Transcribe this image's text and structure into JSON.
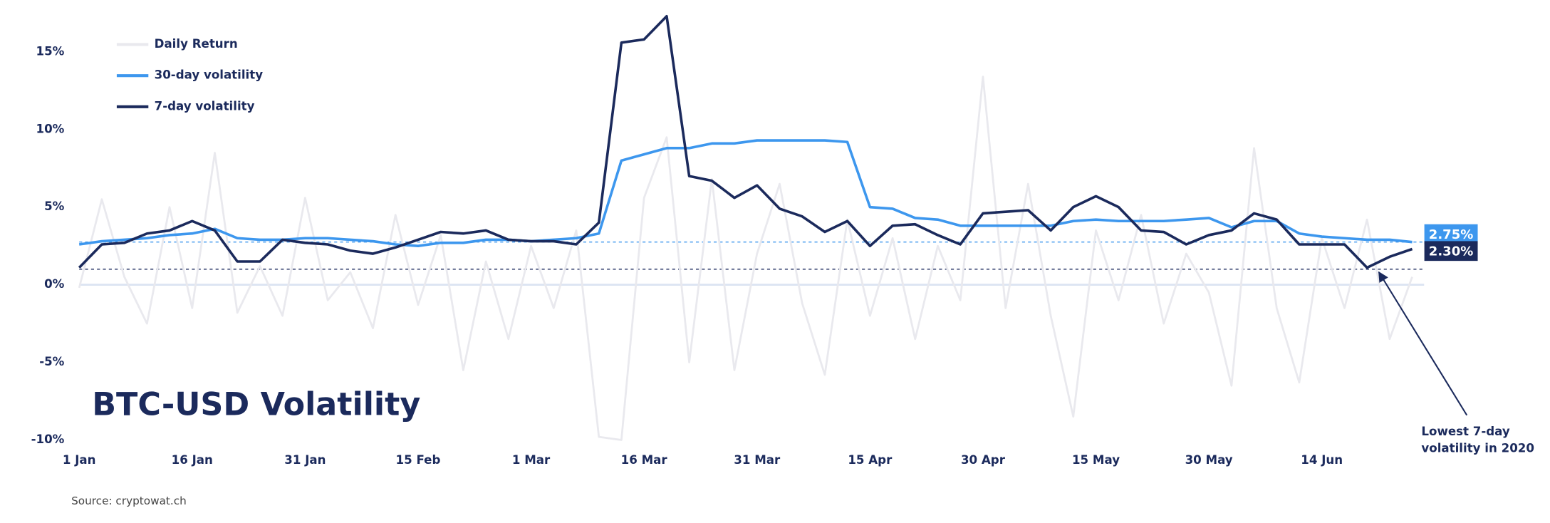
{
  "chart_data": {
    "type": "line",
    "title": "BTC-USD Volatility",
    "source": "Source: cryptowat.ch",
    "categories": [
      "1 Jan",
      null,
      null,
      null,
      null,
      "16 Jan",
      null,
      null,
      null,
      null,
      "31 Jan",
      null,
      null,
      null,
      null,
      "15 Feb",
      null,
      null,
      null,
      null,
      "1 Mar",
      null,
      null,
      null,
      null,
      "16 Mar",
      null,
      null,
      null,
      null,
      "31 Mar",
      null,
      null,
      null,
      null,
      "15 Apr",
      null,
      null,
      null,
      null,
      "30 Apr",
      null,
      null,
      null,
      null,
      "15 May",
      null,
      null,
      null,
      null,
      "30 May",
      null,
      null,
      null,
      null,
      "14 Jun",
      null,
      null,
      null,
      null
    ],
    "ylim": [
      -11,
      18
    ],
    "yticks": [
      {
        "value": -10,
        "label": "-10%"
      },
      {
        "value": -5,
        "label": "-5%"
      },
      {
        "value": 0,
        "label": "0%"
      },
      {
        "value": 5,
        "label": "5%"
      },
      {
        "value": 10,
        "label": "10%"
      },
      {
        "value": 15,
        "label": "15%"
      }
    ],
    "grid": false,
    "series": [
      {
        "name": "Daily Return",
        "color": "#e9e9ee",
        "values": [
          -0.2,
          5.5,
          0.5,
          -2.5,
          5.0,
          -1.5,
          8.5,
          -1.8,
          1.2,
          -2.0,
          5.6,
          -1.0,
          0.8,
          -2.8,
          4.5,
          -1.3,
          3.2,
          -5.5,
          1.5,
          -3.5,
          2.5,
          -1.5,
          3.5,
          -9.8,
          -10,
          5.6,
          9.5,
          -5.0,
          6.8,
          -5.5,
          2.0,
          6.5,
          -1.2,
          -5.8,
          4.2,
          -2.0,
          3.0,
          -3.5,
          2.5,
          -1.0,
          13.4,
          -1.5,
          6.5,
          -2.0,
          -8.5,
          3.5,
          -1.0,
          4.5,
          -2.5,
          2.0,
          -0.5,
          -6.5,
          8.8,
          -1.5,
          -6.3,
          3.0,
          -1.5,
          4.2,
          -3.5,
          0.5
        ]
      },
      {
        "name": "30-day volatility",
        "color": "#3d97ee",
        "values": [
          2.6,
          2.8,
          2.9,
          3.0,
          3.2,
          3.3,
          3.6,
          3.0,
          2.9,
          2.9,
          3.0,
          3.0,
          2.9,
          2.8,
          2.6,
          2.5,
          2.7,
          2.7,
          2.9,
          2.9,
          2.8,
          2.9,
          3.0,
          3.3,
          8.0,
          8.4,
          8.8,
          8.8,
          9.1,
          9.1,
          9.3,
          9.3,
          9.3,
          9.3,
          9.2,
          5.0,
          4.9,
          4.3,
          4.2,
          3.8,
          3.8,
          3.8,
          3.8,
          3.8,
          4.1,
          4.2,
          4.1,
          4.1,
          4.1,
          4.2,
          4.3,
          3.7,
          4.1,
          4.1,
          3.3,
          3.1,
          3.0,
          2.9,
          2.9,
          2.75
        ],
        "end_label": {
          "value": 2.75,
          "label": "2.75%"
        }
      },
      {
        "name": "7-day volatility",
        "color": "#1b2a5c",
        "values": [
          1.1,
          2.6,
          2.7,
          3.3,
          3.5,
          4.1,
          3.5,
          1.5,
          1.5,
          2.9,
          2.7,
          2.6,
          2.2,
          2.0,
          2.4,
          2.9,
          3.4,
          3.3,
          3.5,
          2.9,
          2.8,
          2.8,
          2.6,
          4.0,
          15.6,
          15.8,
          17.3,
          7.0,
          6.7,
          5.6,
          6.4,
          4.9,
          4.4,
          3.4,
          4.1,
          2.5,
          3.8,
          3.9,
          3.2,
          2.6,
          4.6,
          4.7,
          4.8,
          3.5,
          5.0,
          5.7,
          5.0,
          3.5,
          3.4,
          2.6,
          3.2,
          3.5,
          4.6,
          4.2,
          2.6,
          2.6,
          2.6,
          1.1,
          1.8,
          2.3
        ],
        "end_label": {
          "value": 2.3,
          "label": "2.30%"
        }
      }
    ],
    "reference_lines": [
      {
        "value": 2.75,
        "color": "#3d97ee"
      },
      {
        "value": 1.0,
        "color": "#1b2a5c"
      }
    ],
    "annotation": {
      "lines": [
        "Lowest 7-day",
        "volatility in 2020"
      ],
      "value": 1.0,
      "category_index": 57
    }
  }
}
